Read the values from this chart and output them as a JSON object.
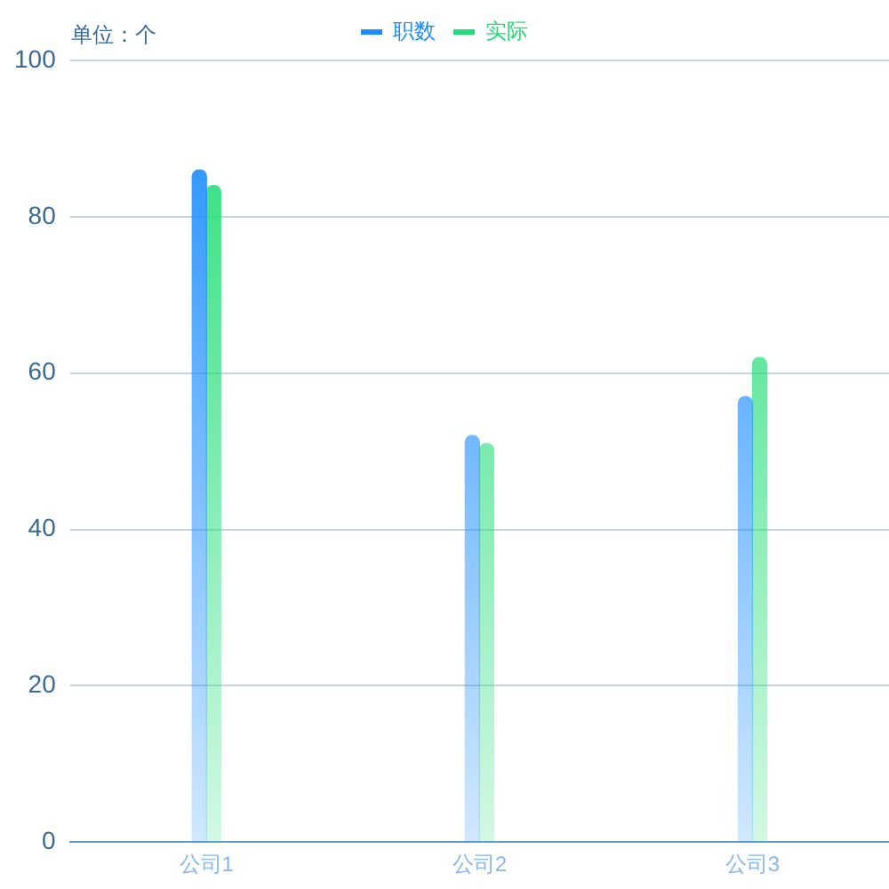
{
  "chart_data": {
    "type": "bar",
    "ylabel": "单位：个",
    "categories": [
      "公司1",
      "公司2",
      "公司3"
    ],
    "series": [
      {
        "name": "职数",
        "color": "#1a8cff",
        "values": [
          86,
          52,
          57
        ]
      },
      {
        "name": "实际",
        "color": "#22dd77",
        "values": [
          84,
          51,
          62
        ]
      }
    ],
    "ylim": [
      0,
      100
    ],
    "yticks": [
      0,
      20,
      40,
      60,
      80,
      100
    ],
    "grid": "y",
    "legend": "top"
  }
}
